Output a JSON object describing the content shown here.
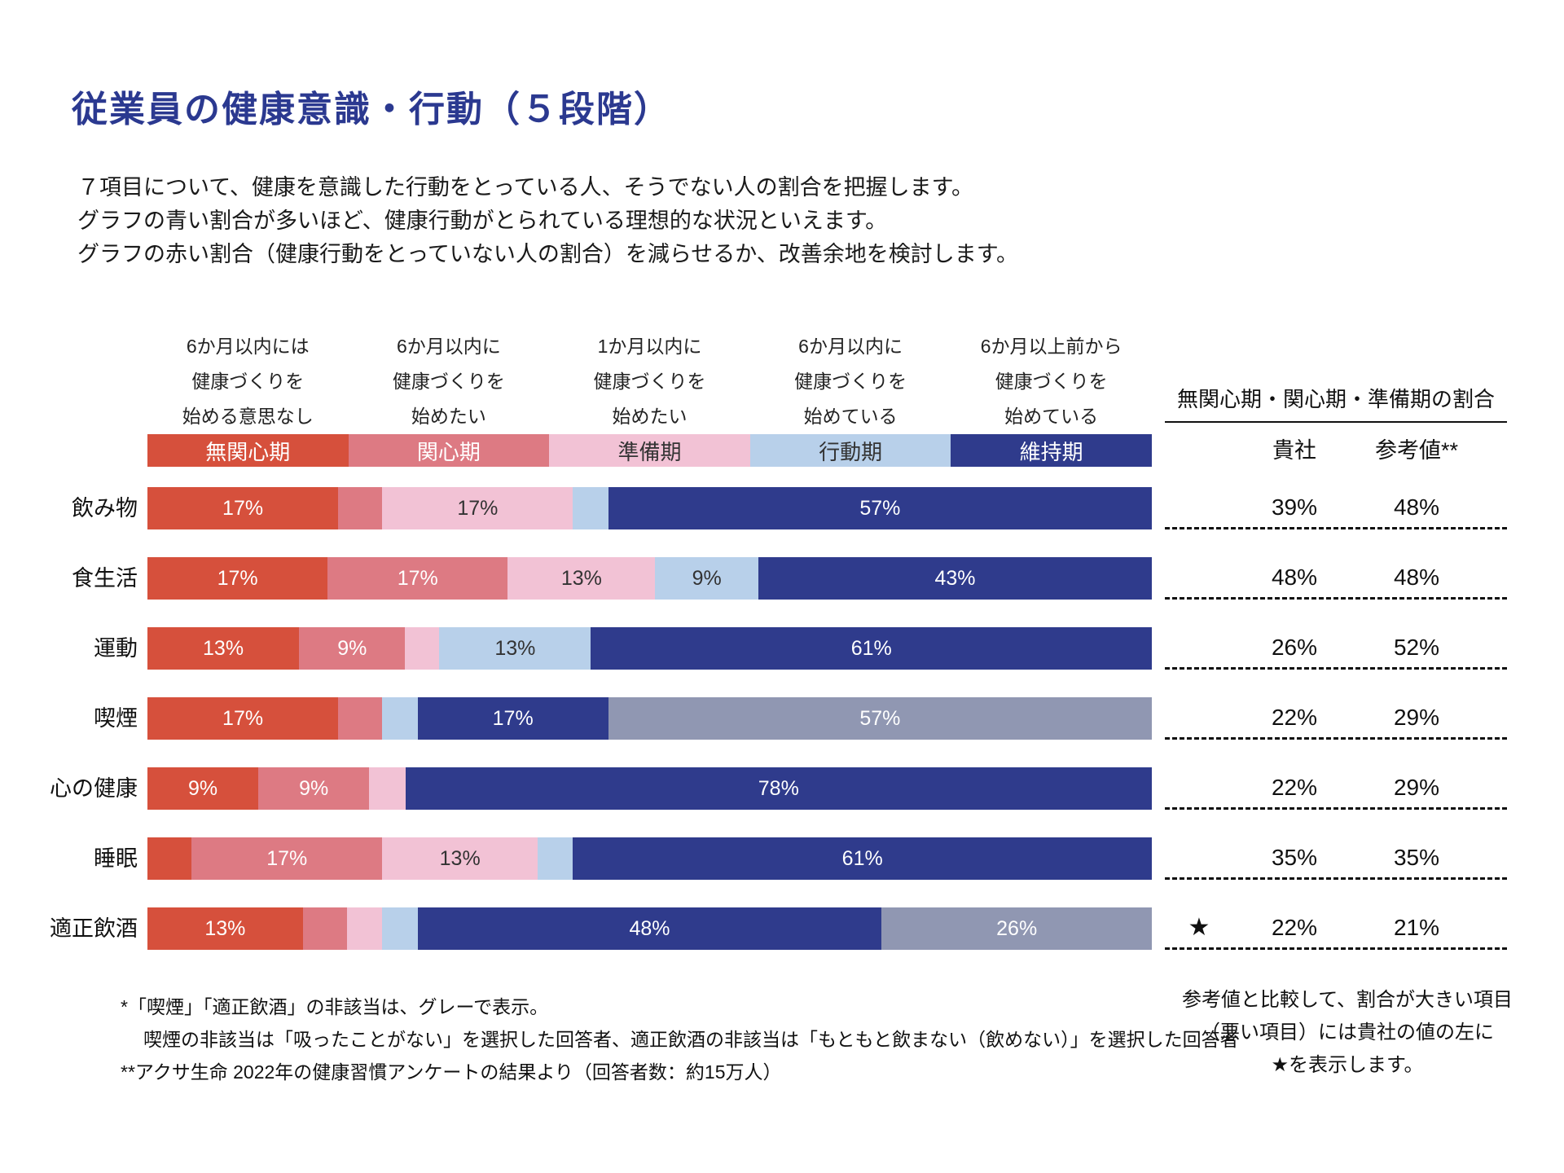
{
  "title": "従業員の健康意識・行動（５段階）",
  "description": [
    "７項目について、健康を意識した行動をとっている人、そうでない人の割合を把握します。",
    "グラフの青い割合が多いほど、健康行動がとられている理想的な状況といえます。",
    "グラフの赤い割合（健康行動をとっていない人の割合）を減らせるか、改善余地を検討します。"
  ],
  "stage_headers": [
    {
      "lines": [
        "6か月以内には",
        "健康づくりを",
        "始める意思なし"
      ]
    },
    {
      "lines": [
        "6か月以内に",
        "健康づくりを",
        "始めたい"
      ]
    },
    {
      "lines": [
        "1か月以内に",
        "健康づくりを",
        "始めたい"
      ]
    },
    {
      "lines": [
        "6か月以内に",
        "健康づくりを",
        "始めている"
      ]
    },
    {
      "lines": [
        "6か月以上前から",
        "健康づくりを",
        "始めている"
      ]
    }
  ],
  "legend": [
    {
      "key": "mukanshinki",
      "label": "無関心期"
    },
    {
      "key": "kanshinki",
      "label": "関心期"
    },
    {
      "key": "junbiki",
      "label": "準備期"
    },
    {
      "key": "kodoki",
      "label": "行動期"
    },
    {
      "key": "ijiki",
      "label": "維持期"
    }
  ],
  "colors": {
    "title": "#2b3990",
    "mukanshinki": {
      "bg": "#d6503c",
      "text": "#ffffff"
    },
    "kanshinki": {
      "bg": "#dd7a83",
      "text": "#ffffff"
    },
    "junbiki": {
      "bg": "#f2c2d5",
      "text": "#333333"
    },
    "kodoki": {
      "bg": "#b8d0ea",
      "text": "#333333"
    },
    "ijiki": {
      "bg": "#2f3b8c",
      "text": "#ffffff"
    },
    "gray": {
      "bg": "#9097b2",
      "text": "#ffffff"
    }
  },
  "right_panel": {
    "header": "無関心期・関心期・準備期の割合",
    "col_company": "貴社",
    "col_reference": "参考値**"
  },
  "rows": [
    {
      "label": "飲み物",
      "company": "39%",
      "reference": "48%",
      "star": "",
      "segments": [
        {
          "stage": "mukanshinki",
          "value": 17,
          "label": "17%"
        },
        {
          "stage": "kanshinki",
          "value": 5,
          "label": ""
        },
        {
          "stage": "junbiki",
          "value": 17,
          "label": "17%"
        },
        {
          "stage": "kodoki",
          "value": 4,
          "label": ""
        },
        {
          "stage": "ijiki",
          "value": 57,
          "label": "57%"
        }
      ]
    },
    {
      "label": "食生活",
      "company": "48%",
      "reference": "48%",
      "star": "",
      "segments": [
        {
          "stage": "mukanshinki",
          "value": 17,
          "label": "17%"
        },
        {
          "stage": "kanshinki",
          "value": 17,
          "label": "17%"
        },
        {
          "stage": "junbiki",
          "value": 13,
          "label": "13%"
        },
        {
          "stage": "kodoki",
          "value": 9,
          "label": "9%"
        },
        {
          "stage": "ijiki",
          "value": 43,
          "label": "43%"
        }
      ]
    },
    {
      "label": "運動",
      "company": "26%",
      "reference": "52%",
      "star": "",
      "segments": [
        {
          "stage": "mukanshinki",
          "value": 13,
          "label": "13%"
        },
        {
          "stage": "kanshinki",
          "value": 9,
          "label": "9%"
        },
        {
          "stage": "junbiki",
          "value": 4,
          "label": ""
        },
        {
          "stage": "kodoki",
          "value": 13,
          "label": "13%"
        },
        {
          "stage": "ijiki",
          "value": 61,
          "label": "61%"
        }
      ]
    },
    {
      "label": "喫煙",
      "company": "22%",
      "reference": "29%",
      "star": "",
      "segments": [
        {
          "stage": "mukanshinki",
          "value": 17,
          "label": "17%"
        },
        {
          "stage": "kanshinki",
          "value": 5,
          "label": ""
        },
        {
          "stage": "junbiki",
          "value": 0,
          "label": ""
        },
        {
          "stage": "kodoki",
          "value": 4,
          "label": ""
        },
        {
          "stage": "ijiki",
          "value": 17,
          "label": "17%"
        },
        {
          "stage": "gray",
          "value": 57,
          "label": "57%"
        }
      ]
    },
    {
      "label": "心の健康",
      "company": "22%",
      "reference": "29%",
      "star": "",
      "segments": [
        {
          "stage": "mukanshinki",
          "value": 9,
          "label": "9%"
        },
        {
          "stage": "kanshinki",
          "value": 9,
          "label": "9%"
        },
        {
          "stage": "junbiki",
          "value": 4,
          "label": ""
        },
        {
          "stage": "kodoki",
          "value": 0,
          "label": ""
        },
        {
          "stage": "ijiki",
          "value": 78,
          "label": "78%"
        }
      ]
    },
    {
      "label": "睡眠",
      "company": "35%",
      "reference": "35%",
      "star": "",
      "segments": [
        {
          "stage": "mukanshinki",
          "value": 5,
          "label": ""
        },
        {
          "stage": "kanshinki",
          "value": 17,
          "label": "17%"
        },
        {
          "stage": "junbiki",
          "value": 13,
          "label": "13%"
        },
        {
          "stage": "kodoki",
          "value": 4,
          "label": ""
        },
        {
          "stage": "ijiki",
          "value": 61,
          "label": "61%"
        }
      ]
    },
    {
      "label": "適正飲酒",
      "company": "22%",
      "reference": "21%",
      "star": "★",
      "segments": [
        {
          "stage": "mukanshinki",
          "value": 13,
          "label": "13%"
        },
        {
          "stage": "kanshinki",
          "value": 5,
          "label": ""
        },
        {
          "stage": "junbiki",
          "value": 4,
          "label": ""
        },
        {
          "stage": "kodoki",
          "value": 4,
          "label": ""
        },
        {
          "stage": "ijiki",
          "value": 48,
          "label": "48%"
        },
        {
          "stage": "gray",
          "value": 26,
          "label": "26%"
        }
      ]
    }
  ],
  "footnotes": [
    "*「喫煙」「適正飲酒」の非該当は、グレーで表示。",
    "喫煙の非該当は「吸ったことがない」を選択した回答者、適正飲酒の非該当は「もともと飲まない（飲めない）」を選択した回答者",
    "**アクサ生命 2022年の健康習慣アンケートの結果より（回答者数：約15万人）"
  ],
  "right_note": [
    "参考値と比較して、割合が大きい項目",
    "（悪い項目）には貴社の値の左に",
    "★を表示します。"
  ],
  "chart_data": {
    "type": "bar",
    "orientation": "horizontal-stacked",
    "title": "従業員の健康意識・行動（５段階）",
    "categories": [
      "飲み物",
      "食生活",
      "運動",
      "喫煙",
      "心の健康",
      "睡眠",
      "適正飲酒"
    ],
    "series": [
      {
        "name": "無関心期",
        "values": [
          17,
          17,
          13,
          17,
          9,
          5,
          13
        ]
      },
      {
        "name": "関心期",
        "values": [
          5,
          17,
          9,
          5,
          9,
          17,
          5
        ]
      },
      {
        "name": "準備期",
        "values": [
          17,
          13,
          4,
          0,
          4,
          13,
          4
        ]
      },
      {
        "name": "行動期",
        "values": [
          4,
          9,
          13,
          4,
          0,
          4,
          4
        ]
      },
      {
        "name": "維持期",
        "values": [
          57,
          43,
          61,
          17,
          78,
          61,
          48
        ]
      },
      {
        "name": "非該当（グレー）",
        "values": [
          0,
          0,
          0,
          57,
          0,
          0,
          26
        ]
      }
    ],
    "value_unit": "%",
    "xlim": [
      0,
      100
    ],
    "legend_position": "top",
    "right_table": {
      "header": "無関心期・関心期・準備期の割合",
      "columns": [
        "貴社",
        "参考値**"
      ],
      "company": [
        39,
        48,
        26,
        22,
        22,
        35,
        22
      ],
      "reference": [
        48,
        48,
        52,
        29,
        29,
        35,
        21
      ],
      "star_rows": [
        "適正飲酒"
      ]
    }
  }
}
